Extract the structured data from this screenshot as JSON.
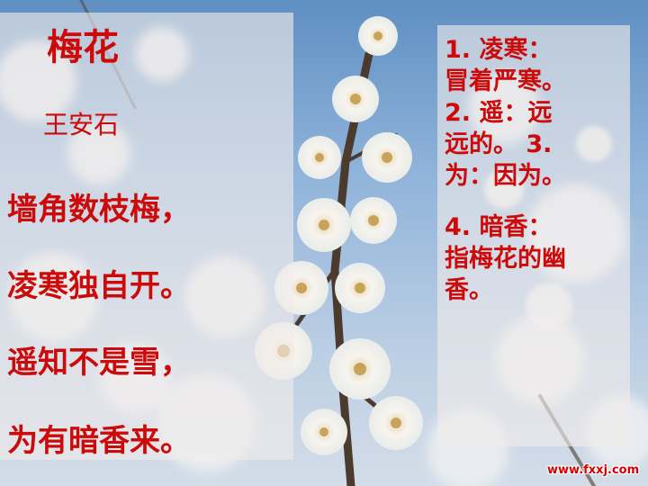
{
  "poem": {
    "title": "梅花",
    "author": "王安石",
    "lines": [
      "墙角数枝梅，",
      "凌寒独自开。",
      "遥知不是雪，",
      "为有暗香来。"
    ]
  },
  "notes": {
    "block1": [
      "1. 凌寒：",
      "冒着严寒。",
      "2. 遥：远",
      "远的。 3.",
      "为：因为。"
    ],
    "block2": [
      "4. 暗香：",
      "指梅花的幽",
      "香。"
    ]
  },
  "watermark": "www.fxxj.com",
  "colors": {
    "text": "#cc0a0a",
    "sky": "#7fa6d2",
    "blossom": "#f4f1ec"
  }
}
